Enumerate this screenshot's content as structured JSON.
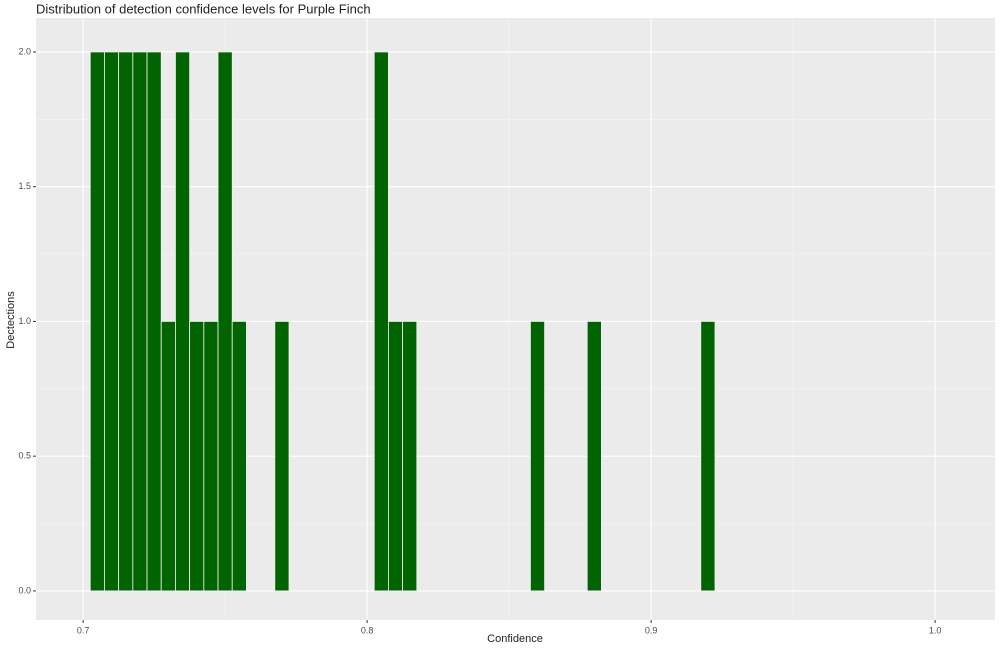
{
  "chart_data": {
    "type": "histogram",
    "title": "Distribution of detection confidence levels for Purple Finch",
    "x_label": "Confidence",
    "y_label": "Dectections",
    "bins": [
      0.7025,
      0.7075,
      0.7125,
      0.7175,
      0.7225,
      0.7275,
      0.7325,
      0.7375,
      0.7425,
      0.7475,
      0.7525,
      0.7575,
      0.7625,
      0.7675,
      0.7725,
      0.7775,
      0.7825,
      0.7875,
      0.7925,
      0.7975,
      0.8025,
      0.8075,
      0.8125,
      0.8175,
      0.8225,
      0.8275,
      0.8325,
      0.8375,
      0.8425,
      0.8475,
      0.8525,
      0.8575,
      0.8625,
      0.8675,
      0.8725,
      0.8775,
      0.8825,
      0.8875,
      0.8925,
      0.8975,
      0.9025,
      0.9075,
      0.9125,
      0.9175,
      0.9225
    ],
    "values": [
      2,
      2,
      2,
      2,
      2,
      1,
      2,
      1,
      1,
      2,
      1,
      0,
      0,
      1,
      0,
      0,
      0,
      0,
      0,
      0,
      2,
      1,
      1,
      0,
      0,
      0,
      0,
      0,
      0,
      0,
      0,
      1,
      0,
      0,
      0,
      1,
      0,
      0,
      0,
      0,
      0,
      0,
      0,
      1
    ],
    "color": "#006400",
    "edge_color": "#f2f2f2",
    "xlim": [
      0.6834,
      1.0211
    ],
    "xticks": [
      0.7,
      0.8,
      0.9,
      {
        "value": 1,
        "label": "1.0"
      }
    ],
    "x_minor_grid": [
      0.75,
      0.85,
      0.95
    ],
    "ylim": [
      -0.108,
      2.126
    ],
    "yticks": [
      {
        "value": 0,
        "label": "0.0"
      },
      0.5,
      {
        "value": 1,
        "label": "1.0"
      },
      1.5,
      {
        "value": 2,
        "label": "2.0"
      }
    ],
    "y_minor_grid": [
      0.25,
      0.75,
      1.25,
      1.75
    ],
    "grid": true,
    "panel_color": "#ebebeb"
  }
}
